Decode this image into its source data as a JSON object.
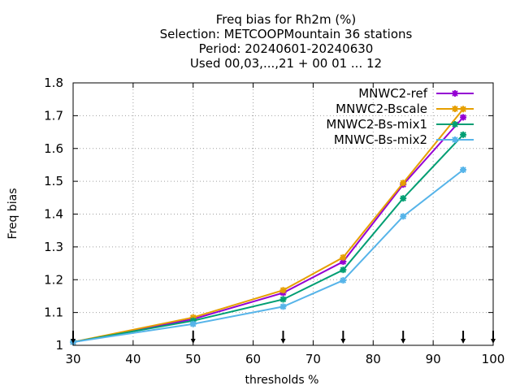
{
  "chart_data": {
    "type": "line",
    "title_lines": [
      "Freq bias  for Rh2m (%)",
      "Selection: METCOOPMountain     36 stations",
      "Period: 20240601-20240630",
      "Used 00,03,...,21 + 00 01 ... 12"
    ],
    "xlabel": "thresholds %",
    "ylabel": "Freq bias",
    "xlim": [
      30,
      100
    ],
    "ylim": [
      1,
      1.8
    ],
    "xticks": [
      30,
      40,
      50,
      60,
      70,
      80,
      90,
      100
    ],
    "xtick_labels": [
      "30",
      "40",
      "50",
      "60",
      "70",
      "80",
      "90",
      "100"
    ],
    "yticks": [
      1,
      1.1,
      1.2,
      1.3,
      1.4,
      1.5,
      1.6,
      1.7,
      1.8
    ],
    "ytick_labels": [
      "1",
      "1.1",
      "1.2",
      "1.3",
      "1.4",
      "1.5",
      "1.6",
      "1.7",
      "1.8"
    ],
    "grid": true,
    "legend_position": "top-right",
    "threshold_markers": [
      30,
      50,
      65,
      75,
      85,
      95,
      100
    ],
    "series": [
      {
        "name": "MNWC2-ref",
        "color": "#9400d3",
        "x": [
          30,
          50,
          65,
          75,
          85,
          95
        ],
        "y": [
          1.01,
          1.08,
          1.16,
          1.255,
          1.49,
          1.695
        ]
      },
      {
        "name": "MNWC2-Bscale",
        "color": "#e69f00",
        "x": [
          30,
          50,
          65,
          75,
          85,
          95
        ],
        "y": [
          1.01,
          1.085,
          1.168,
          1.268,
          1.495,
          1.72
        ]
      },
      {
        "name": "MNWC2-Bs-mix1",
        "color": "#009e73",
        "x": [
          30,
          50,
          65,
          75,
          85,
          95
        ],
        "y": [
          1.01,
          1.075,
          1.14,
          1.23,
          1.448,
          1.642
        ]
      },
      {
        "name": "MNWC-Bs-mix2",
        "color": "#56b4e9",
        "x": [
          30,
          50,
          65,
          75,
          85,
          95
        ],
        "y": [
          1.01,
          1.065,
          1.118,
          1.198,
          1.393,
          1.535
        ]
      }
    ]
  }
}
